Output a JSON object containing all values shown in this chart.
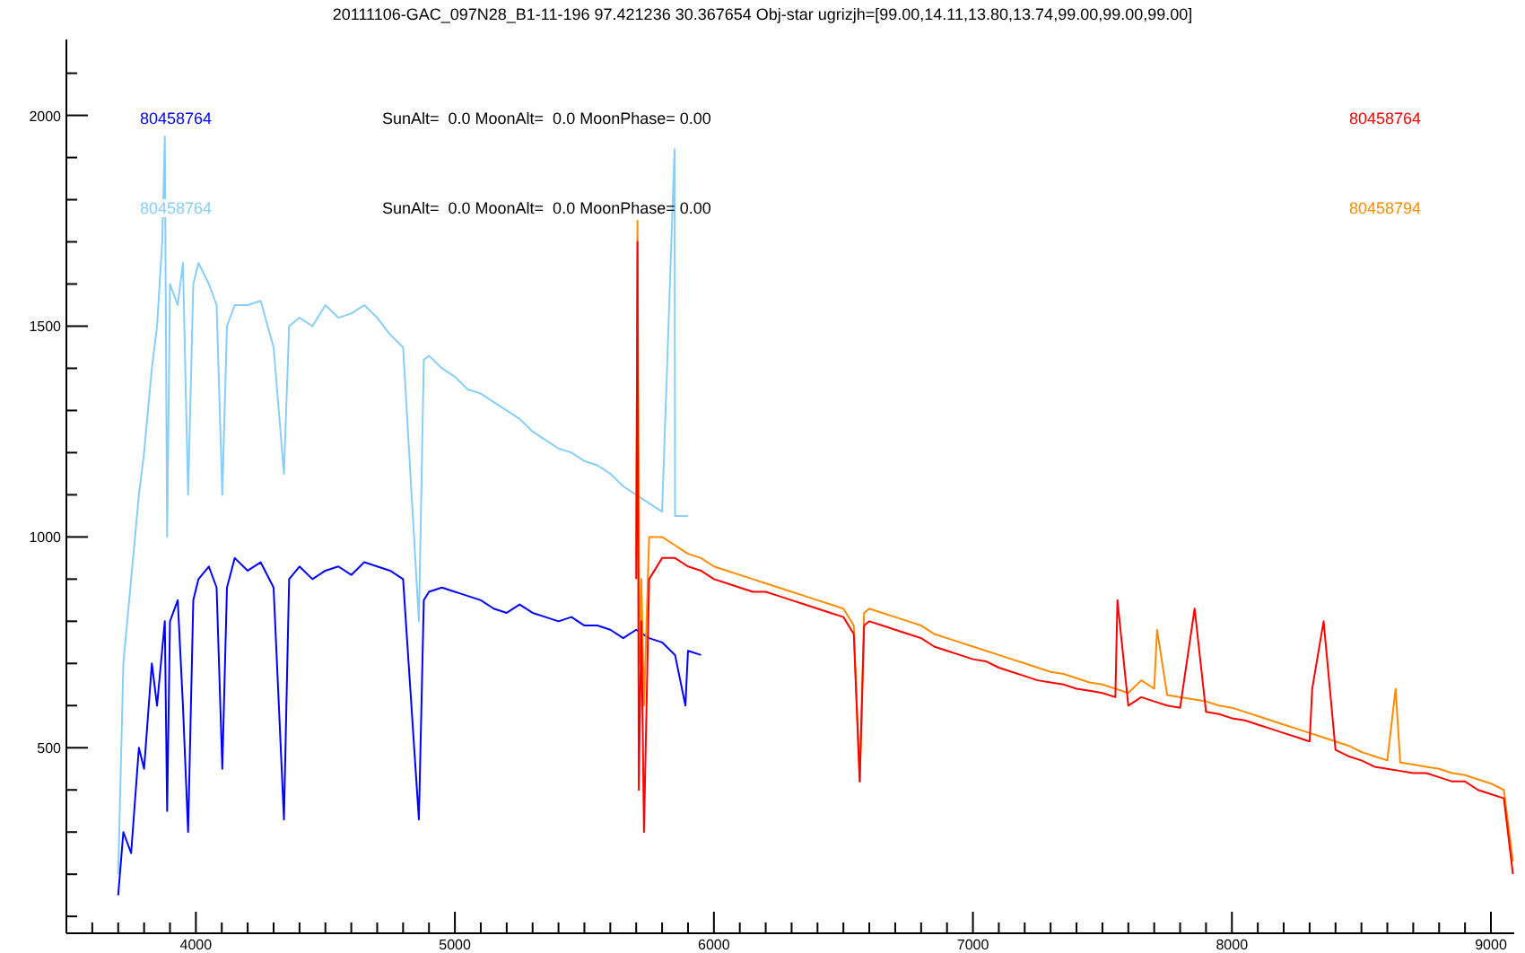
{
  "chart_data": {
    "type": "line",
    "title": "20111106-GAC_097N28_B1-11-196 97.421236 30.367654 Obj-star ugrizjh=[99.00,14.11,13.80,13.74,99.00,99.00,99.00]",
    "annotations": [
      "SunAlt=  0.0 MoonAlt=  0.0 MoonPhase= 0.00",
      "SunAlt=  0.0 MoonAlt=  0.0 MoonPhase= 0.00"
    ],
    "xlim": [
      3500,
      9090
    ],
    "xticks": [
      {
        "value": 3600,
        "label": null
      },
      {
        "value": 3700,
        "label": null
      },
      {
        "value": 3800,
        "label": null
      },
      {
        "value": 3900,
        "label": null
      },
      4000,
      {
        "value": 4100,
        "label": null
      },
      {
        "value": 4200,
        "label": null
      },
      {
        "value": 4300,
        "label": null
      },
      {
        "value": 4400,
        "label": null
      },
      {
        "value": 4500,
        "label": null
      },
      {
        "value": 4600,
        "label": null
      },
      {
        "value": 4700,
        "label": null
      },
      {
        "value": 4800,
        "label": null
      },
      {
        "value": 4900,
        "label": null
      },
      5000,
      {
        "value": 5100,
        "label": null
      },
      {
        "value": 5200,
        "label": null
      },
      {
        "value": 5300,
        "label": null
      },
      {
        "value": 5400,
        "label": null
      },
      {
        "value": 5500,
        "label": null
      },
      {
        "value": 5600,
        "label": null
      },
      {
        "value": 5700,
        "label": null
      },
      {
        "value": 5800,
        "label": null
      },
      {
        "value": 5900,
        "label": null
      },
      6000,
      {
        "value": 6100,
        "label": null
      },
      {
        "value": 6200,
        "label": null
      },
      {
        "value": 6300,
        "label": null
      },
      {
        "value": 6400,
        "label": null
      },
      {
        "value": 6500,
        "label": null
      },
      {
        "value": 6600,
        "label": null
      },
      {
        "value": 6700,
        "label": null
      },
      {
        "value": 6800,
        "label": null
      },
      {
        "value": 6900,
        "label": null
      },
      7000,
      {
        "value": 7100,
        "label": null
      },
      {
        "value": 7200,
        "label": null
      },
      {
        "value": 7300,
        "label": null
      },
      {
        "value": 7400,
        "label": null
      },
      {
        "value": 7500,
        "label": null
      },
      {
        "value": 7600,
        "label": null
      },
      {
        "value": 7700,
        "label": null
      },
      {
        "value": 7800,
        "label": null
      },
      {
        "value": 7900,
        "label": null
      },
      8000,
      {
        "value": 8100,
        "label": null
      },
      {
        "value": 8200,
        "label": null
      },
      {
        "value": 8300,
        "label": null
      },
      {
        "value": 8400,
        "label": null
      },
      {
        "value": 8500,
        "label": null
      },
      {
        "value": 8600,
        "label": null
      },
      {
        "value": 8700,
        "label": null
      },
      {
        "value": 8800,
        "label": null
      },
      {
        "value": 8900,
        "label": null
      },
      9000
    ],
    "ylim": [
      60,
      2180
    ],
    "yticks": [
      {
        "value": 100,
        "label": null
      },
      {
        "value": 200,
        "label": null
      },
      {
        "value": 300,
        "label": null
      },
      {
        "value": 400,
        "label": null
      },
      500,
      {
        "value": 600,
        "label": null
      },
      {
        "value": 700,
        "label": null
      },
      {
        "value": 800,
        "label": null
      },
      {
        "value": 900,
        "label": null
      },
      1000,
      {
        "value": 1100,
        "label": null
      },
      {
        "value": 1200,
        "label": null
      },
      {
        "value": 1300,
        "label": null
      },
      {
        "value": 1400,
        "label": null
      },
      1500,
      {
        "value": 1600,
        "label": null
      },
      {
        "value": 1700,
        "label": null
      },
      {
        "value": 1800,
        "label": null
      },
      {
        "value": 1900,
        "label": null
      },
      2000,
      {
        "value": 2100,
        "label": null
      }
    ],
    "series": [
      {
        "name": "80458764",
        "color": "#87cefa",
        "x": [
          3700,
          3720,
          3750,
          3780,
          3800,
          3830,
          3850,
          3870,
          3880,
          3889,
          3900,
          3930,
          3950,
          3970,
          3990,
          4010,
          4050,
          4080,
          4102,
          4120,
          4150,
          4200,
          4250,
          4300,
          4340,
          4360,
          4400,
          4450,
          4500,
          4550,
          4600,
          4650,
          4700,
          4750,
          4800,
          4861,
          4880,
          4900,
          4950,
          5000,
          5050,
          5100,
          5150,
          5200,
          5250,
          5300,
          5350,
          5400,
          5450,
          5500,
          5550,
          5600,
          5650,
          5700,
          5750,
          5800,
          5848,
          5850,
          5900
        ],
        "values": [
          200,
          700,
          900,
          1100,
          1200,
          1400,
          1500,
          1700,
          1950,
          1000,
          1600,
          1550,
          1650,
          1100,
          1600,
          1650,
          1600,
          1550,
          1100,
          1500,
          1550,
          1550,
          1560,
          1450,
          1150,
          1500,
          1520,
          1500,
          1550,
          1520,
          1530,
          1550,
          1520,
          1480,
          1450,
          800,
          1420,
          1430,
          1400,
          1380,
          1350,
          1340,
          1320,
          1300,
          1280,
          1250,
          1230,
          1210,
          1200,
          1180,
          1170,
          1150,
          1120,
          1100,
          1080,
          1060,
          1920,
          1050,
          1050
        ]
      },
      {
        "name": "80458764",
        "color": "#0000ff",
        "x": [
          3700,
          3720,
          3750,
          3780,
          3800,
          3830,
          3850,
          3880,
          3889,
          3900,
          3930,
          3950,
          3970,
          3990,
          4010,
          4050,
          4080,
          4102,
          4120,
          4150,
          4200,
          4250,
          4300,
          4340,
          4360,
          4400,
          4450,
          4500,
          4550,
          4600,
          4650,
          4700,
          4750,
          4800,
          4861,
          4880,
          4900,
          4950,
          5000,
          5050,
          5100,
          5150,
          5200,
          5250,
          5300,
          5350,
          5400,
          5450,
          5500,
          5550,
          5600,
          5650,
          5700,
          5750,
          5800,
          5850,
          5890,
          5900,
          5950
        ],
        "values": [
          150,
          300,
          250,
          500,
          450,
          700,
          600,
          800,
          350,
          800,
          850,
          600,
          300,
          850,
          900,
          930,
          880,
          450,
          880,
          950,
          920,
          940,
          880,
          330,
          900,
          930,
          900,
          920,
          930,
          910,
          940,
          930,
          920,
          900,
          330,
          850,
          870,
          880,
          870,
          860,
          850,
          830,
          820,
          840,
          820,
          810,
          800,
          810,
          790,
          790,
          780,
          760,
          780,
          760,
          750,
          720,
          600,
          730,
          720
        ]
      },
      {
        "name": "80458794",
        "color": "#ff8c00",
        "x": [
          5700,
          5705,
          5712,
          5720,
          5730,
          5750,
          5800,
          5850,
          5900,
          5950,
          6000,
          6050,
          6100,
          6150,
          6200,
          6250,
          6300,
          6350,
          6400,
          6450,
          6500,
          6540,
          6563,
          6580,
          6600,
          6650,
          6700,
          6750,
          6800,
          6850,
          6900,
          6950,
          7000,
          7050,
          7100,
          7150,
          7200,
          7250,
          7300,
          7350,
          7400,
          7450,
          7500,
          7550,
          7600,
          7650,
          7700,
          7711,
          7750,
          7800,
          7850,
          7900,
          7950,
          8000,
          8050,
          8100,
          8150,
          8200,
          8250,
          8300,
          8350,
          8400,
          8450,
          8500,
          8550,
          8600,
          8632,
          8650,
          8700,
          8750,
          8800,
          8850,
          8900,
          8950,
          9000,
          9050,
          9085
        ],
        "values": [
          950,
          1750,
          700,
          900,
          600,
          1000,
          1000,
          980,
          960,
          950,
          930,
          920,
          910,
          900,
          890,
          880,
          870,
          860,
          850,
          840,
          830,
          790,
          420,
          820,
          830,
          820,
          810,
          800,
          790,
          770,
          760,
          750,
          740,
          730,
          720,
          710,
          700,
          690,
          680,
          675,
          665,
          655,
          650,
          640,
          630,
          660,
          640,
          780,
          625,
          620,
          615,
          610,
          600,
          595,
          585,
          575,
          565,
          555,
          545,
          535,
          525,
          515,
          505,
          490,
          480,
          470,
          640,
          465,
          460,
          455,
          450,
          440,
          435,
          425,
          415,
          400,
          230
        ]
      },
      {
        "name": "80458764",
        "color": "#ff0000",
        "x": [
          5700,
          5705,
          5710,
          5720,
          5730,
          5750,
          5800,
          5850,
          5900,
          5950,
          6000,
          6050,
          6100,
          6150,
          6200,
          6250,
          6300,
          6350,
          6400,
          6450,
          6500,
          6540,
          6563,
          6580,
          6600,
          6650,
          6700,
          6750,
          6800,
          6850,
          6900,
          6950,
          7000,
          7050,
          7100,
          7150,
          7200,
          7250,
          7300,
          7350,
          7400,
          7450,
          7500,
          7550,
          7558,
          7600,
          7650,
          7700,
          7750,
          7800,
          7856,
          7900,
          7950,
          8000,
          8050,
          8100,
          8150,
          8200,
          8250,
          8300,
          8310,
          8354,
          8400,
          8450,
          8500,
          8550,
          8600,
          8650,
          8700,
          8750,
          8800,
          8850,
          8900,
          8950,
          9000,
          9050,
          9085
        ],
        "values": [
          900,
          1700,
          400,
          800,
          300,
          900,
          950,
          950,
          930,
          920,
          900,
          890,
          880,
          870,
          870,
          860,
          850,
          840,
          830,
          820,
          810,
          770,
          420,
          790,
          800,
          790,
          780,
          770,
          760,
          740,
          730,
          720,
          710,
          705,
          690,
          680,
          670,
          660,
          655,
          650,
          640,
          635,
          630,
          620,
          850,
          600,
          620,
          610,
          600,
          595,
          830,
          585,
          580,
          570,
          565,
          555,
          545,
          535,
          525,
          515,
          640,
          800,
          495,
          480,
          470,
          455,
          450,
          445,
          440,
          440,
          430,
          420,
          420,
          400,
          390,
          380,
          200
        ]
      }
    ]
  }
}
